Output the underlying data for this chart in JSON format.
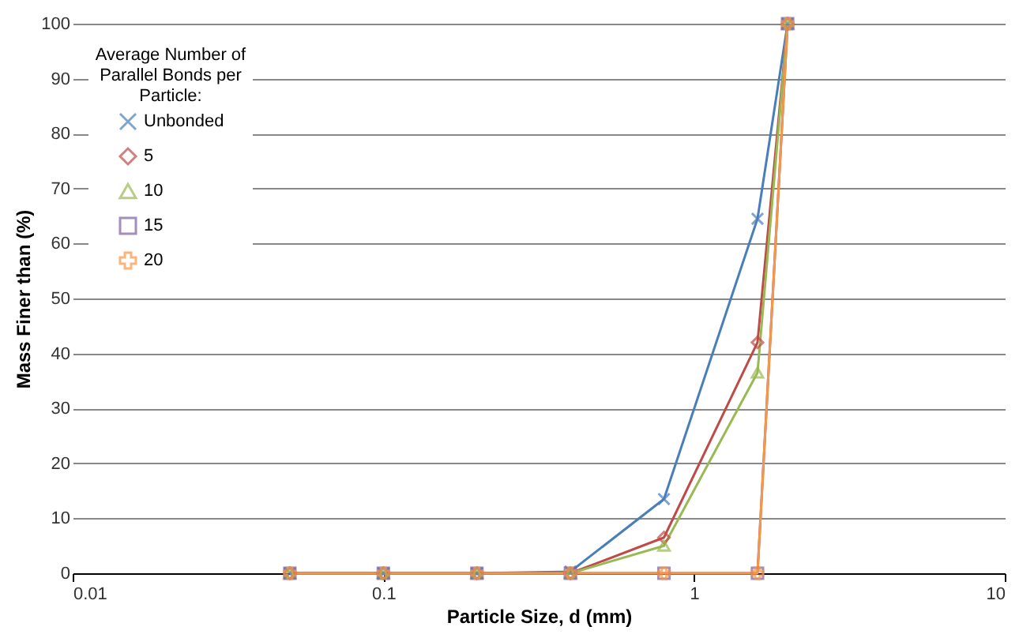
{
  "chart_data": {
    "type": "line",
    "xlabel": "Particle Size, d (mm)",
    "ylabel": "Mass Finer than (%)",
    "legend_title": "Average Number of Parallel Bonds per Particle:",
    "x": [
      0.05,
      0.1,
      0.2,
      0.4,
      0.8,
      1.6,
      2.0
    ],
    "series": [
      {
        "name": "Unbonded",
        "color": "#4a7ebb",
        "marker": "cross",
        "values": [
          0,
          0,
          0,
          0.3,
          13.5,
          64.5,
          100
        ]
      },
      {
        "name": "5",
        "color": "#be4b48",
        "marker": "diamond",
        "values": [
          0,
          0,
          0,
          0,
          6.5,
          42,
          100
        ]
      },
      {
        "name": "10",
        "color": "#98b954",
        "marker": "triangle",
        "values": [
          0,
          0,
          0,
          0,
          5,
          36.5,
          100
        ]
      },
      {
        "name": "15",
        "color": "#7d60a0",
        "marker": "square",
        "values": [
          0,
          0,
          0,
          0,
          0,
          0,
          100
        ]
      },
      {
        "name": "20",
        "color": "#f79646",
        "marker": "cross",
        "values": [
          0,
          0,
          0,
          0,
          0,
          0,
          100
        ]
      }
    ],
    "log": "x",
    "xlim": [
      0.01,
      10
    ],
    "xticks": [
      0.01,
      0.1,
      1,
      10
    ],
    "ylim": [
      0,
      100
    ],
    "yticks": [
      0,
      10,
      20,
      30,
      40,
      50,
      60,
      70,
      80,
      90,
      100
    ],
    "grid": "y",
    "legend": "top left",
    "line_style": "solid"
  }
}
